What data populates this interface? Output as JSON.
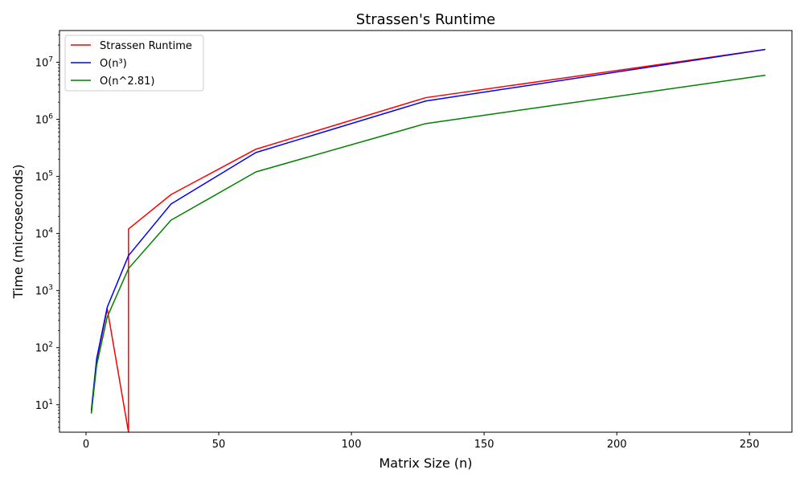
{
  "chart_data": {
    "type": "line",
    "title": "Strassen's Runtime",
    "xlabel": "Matrix Size (n)",
    "ylabel": "Time (microseconds)",
    "xlim": [
      -10,
      266
    ],
    "ylim": [
      3.3,
      36000000
    ],
    "yscale": "log",
    "grid": false,
    "legend_position": "top-left",
    "x_ticks": [
      0,
      50,
      100,
      150,
      200,
      250
    ],
    "y_ticks": [
      {
        "value": 10,
        "mant": "10",
        "exp": "1"
      },
      {
        "value": 100,
        "mant": "10",
        "exp": "2"
      },
      {
        "value": 1000,
        "mant": "10",
        "exp": "3"
      },
      {
        "value": 10000,
        "mant": "10",
        "exp": "4"
      },
      {
        "value": 100000,
        "mant": "10",
        "exp": "5"
      },
      {
        "value": 1000000,
        "mant": "10",
        "exp": "6"
      },
      {
        "value": 10000000,
        "mant": "10",
        "exp": "7"
      }
    ],
    "series": [
      {
        "name": "Strassen Runtime",
        "color": "#ff0000",
        "x": [
          2,
          4,
          8,
          16,
          16,
          32,
          64,
          128,
          256
        ],
        "y": [
          7.2,
          60,
          480,
          3.3,
          12000,
          48000,
          300000,
          2400000,
          16800000
        ]
      },
      {
        "name": "O(n³)",
        "color": "#0000ff",
        "x": [
          2,
          4,
          8,
          16,
          32,
          64,
          128,
          256
        ],
        "y": [
          8,
          64,
          512,
          4096,
          32768,
          262144,
          2097152,
          16777216
        ]
      },
      {
        "name": "O(n^2.81)",
        "color": "#008000",
        "x": [
          2,
          4,
          8,
          16,
          32,
          64,
          128,
          256
        ],
        "y": [
          7.0,
          49.2,
          345.8,
          2430,
          17080,
          120000,
          843500,
          5928000
        ]
      }
    ]
  }
}
